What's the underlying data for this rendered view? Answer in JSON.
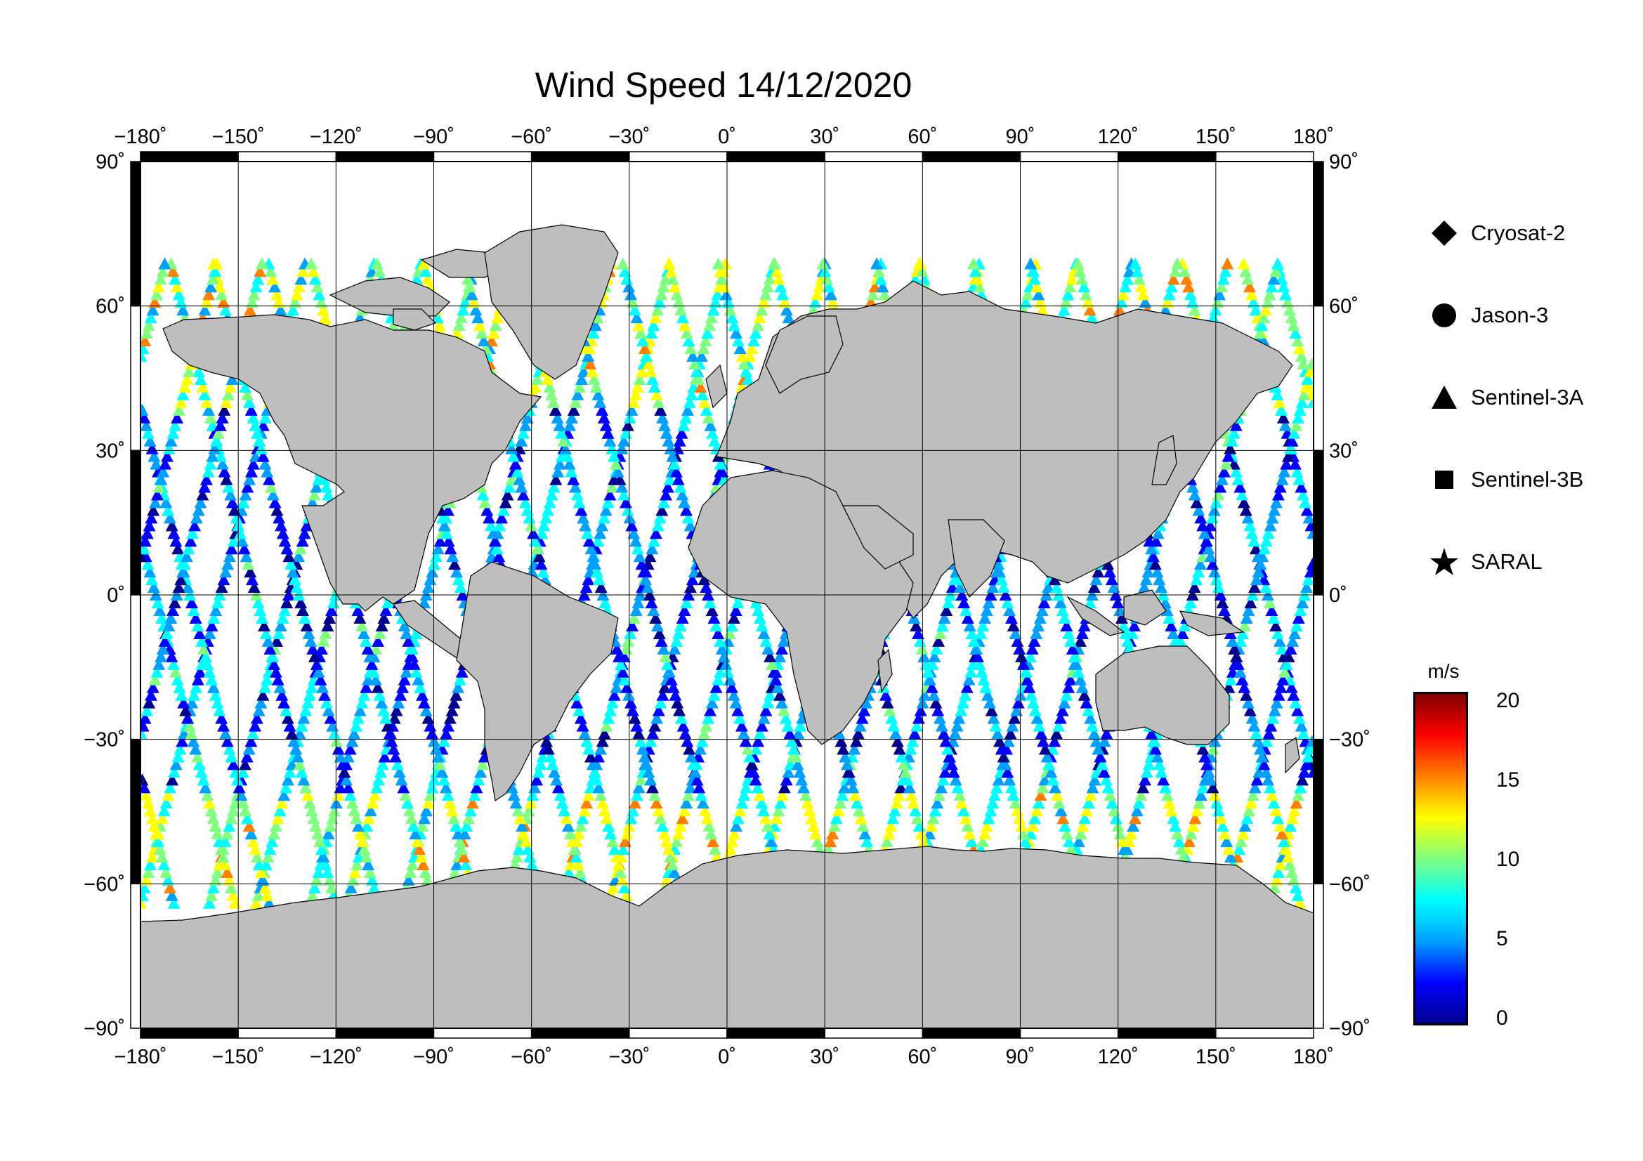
{
  "title": "Wind Speed 14/12/2020",
  "axes": {
    "lon_ticks": [
      "−180˚",
      "−150˚",
      "−120˚",
      "−90˚",
      "−60˚",
      "−30˚",
      "0˚",
      "30˚",
      "60˚",
      "90˚",
      "120˚",
      "150˚",
      "180˚"
    ],
    "lat_ticks_left": [
      "90˚",
      "60˚",
      "30˚",
      "0˚",
      "−30˚",
      "−60˚",
      "−90˚"
    ],
    "lat_ticks_right": [
      "90˚",
      "60˚",
      "30˚",
      "0˚",
      "−30˚",
      "−60˚",
      "−90˚"
    ],
    "lon_range": [
      -180,
      180
    ],
    "lat_range": [
      -90,
      90
    ],
    "gridline_spacing_deg": 30
  },
  "legend": {
    "items": [
      {
        "label": "Cryosat-2",
        "symbol": "diamond"
      },
      {
        "label": "Jason-3",
        "symbol": "circle"
      },
      {
        "label": "Sentinel-3A",
        "symbol": "triangle"
      },
      {
        "label": "Sentinel-3B",
        "symbol": "square"
      },
      {
        "label": "SARAL",
        "symbol": "star"
      }
    ]
  },
  "colorbar": {
    "unit": "m/s",
    "ticks": [
      "20",
      "15",
      "10",
      "5",
      "0"
    ],
    "range": [
      0,
      20
    ],
    "colors": [
      "#00008f",
      "#0000ff",
      "#00a0ff",
      "#00ffff",
      "#80ff80",
      "#ffff00",
      "#ff8000",
      "#ff0000",
      "#800000"
    ]
  },
  "colors": {
    "land": "#bebebe",
    "ocean": "#ffffff",
    "frame": "#000000"
  }
}
